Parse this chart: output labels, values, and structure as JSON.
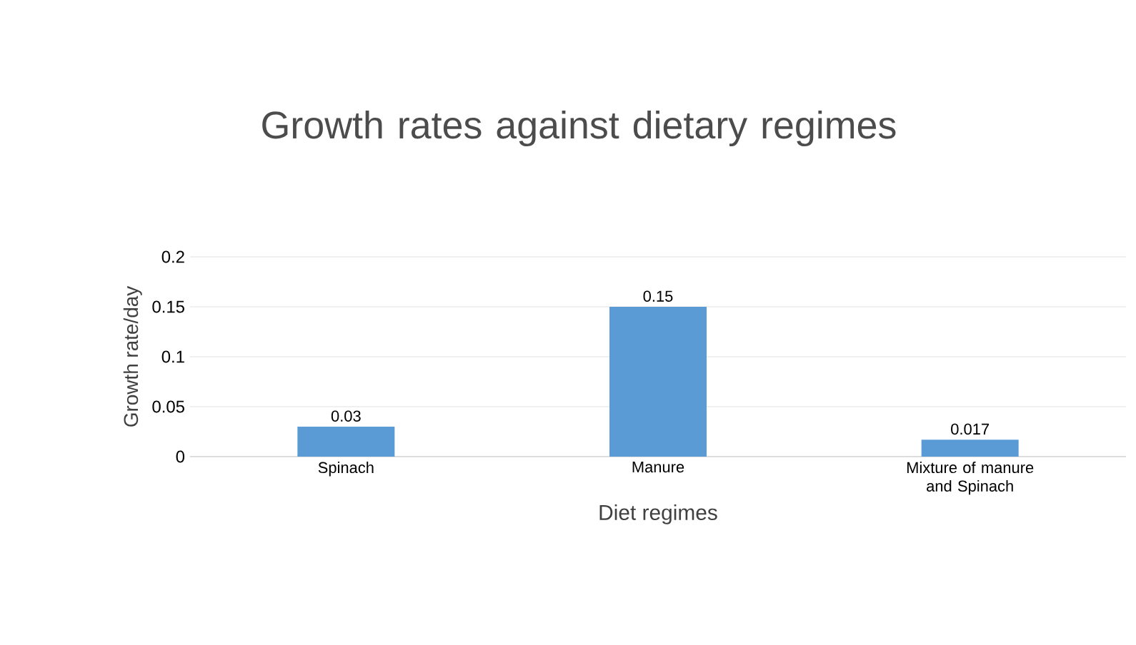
{
  "chart_data": {
    "type": "bar",
    "title": "Growth rates against dietary regimes",
    "xlabel": "Diet regimes",
    "ylabel": "Growth rate/day",
    "categories": [
      "Spinach",
      "Manure",
      "Mixture of manure and Spinach"
    ],
    "values": [
      0.03,
      0.15,
      0.017
    ],
    "color": "#5b9bd5",
    "ylim": [
      0,
      0.2
    ],
    "yticks": [
      0,
      0.05,
      0.1,
      0.15,
      0.2
    ],
    "grid": "y",
    "data_labels": true
  }
}
